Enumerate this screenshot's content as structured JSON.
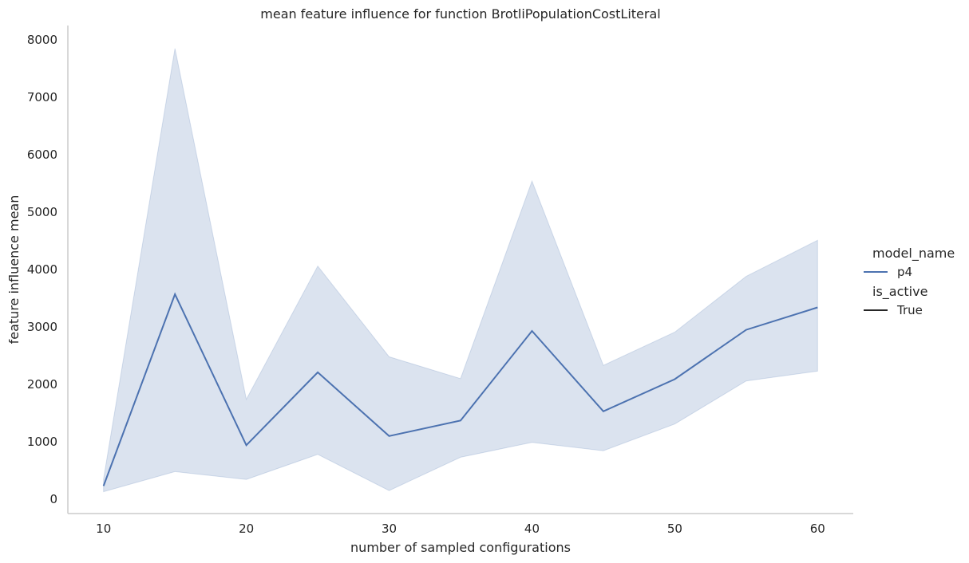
{
  "chart_data": {
    "type": "line",
    "title": "mean feature influence for function BrotliPopulationCostLiteral",
    "xlabel": "number of sampled configurations",
    "ylabel": "feature influence mean",
    "xlim": [
      7.5,
      62.5
    ],
    "ylim": [
      -250,
      8250
    ],
    "x_ticks": [
      10,
      20,
      30,
      40,
      50,
      60
    ],
    "y_ticks": [
      0,
      1000,
      2000,
      3000,
      4000,
      5000,
      6000,
      7000,
      8000
    ],
    "grid": false,
    "legend_position": "right",
    "x": [
      10,
      15,
      20,
      25,
      30,
      35,
      40,
      45,
      50,
      55,
      60
    ],
    "series": [
      {
        "name": "p4",
        "color": "#4c72b0",
        "values": [
          230,
          3570,
          940,
          2210,
          1100,
          1370,
          2930,
          1530,
          2090,
          2950,
          3340
        ],
        "ci_lower": [
          130,
          480,
          345,
          780,
          150,
          730,
          990,
          845,
          1310,
          2060,
          2230
        ],
        "ci_upper": [
          350,
          7850,
          1740,
          4060,
          2480,
          2100,
          5540,
          2330,
          2910,
          3880,
          4510
        ]
      }
    ],
    "legend": {
      "groups": [
        {
          "title": "model_name",
          "entries": [
            {
              "label": "p4",
              "color": "#4c72b0"
            }
          ]
        },
        {
          "title": "is_active",
          "entries": [
            {
              "label": "True",
              "color": "#262626"
            }
          ]
        }
      ]
    }
  }
}
